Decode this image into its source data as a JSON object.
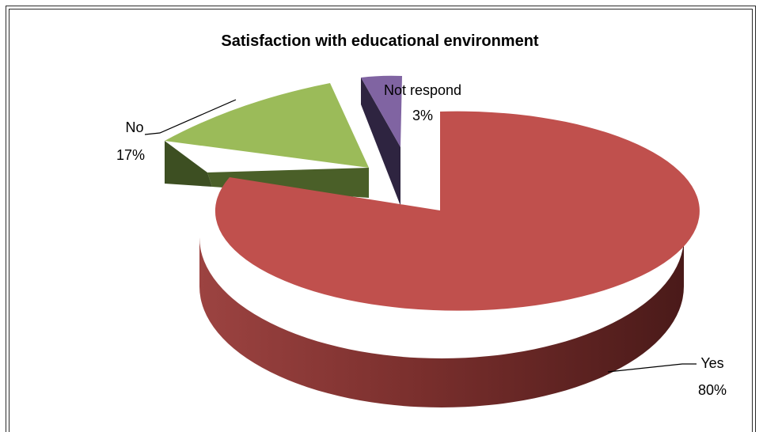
{
  "chart_data": {
    "type": "pie",
    "title": "Satisfaction with educational environment",
    "slices": [
      {
        "label": "Yes",
        "value": 80,
        "percent_label": "80%",
        "color": "#c0504d"
      },
      {
        "label": "No",
        "value": 17,
        "percent_label": "17%",
        "color": "#9bbb59"
      },
      {
        "label": "Not respond",
        "value": 3,
        "percent_label": "3%",
        "color": "#8064a2"
      }
    ],
    "legend": "none",
    "style": "3d-exploded"
  }
}
